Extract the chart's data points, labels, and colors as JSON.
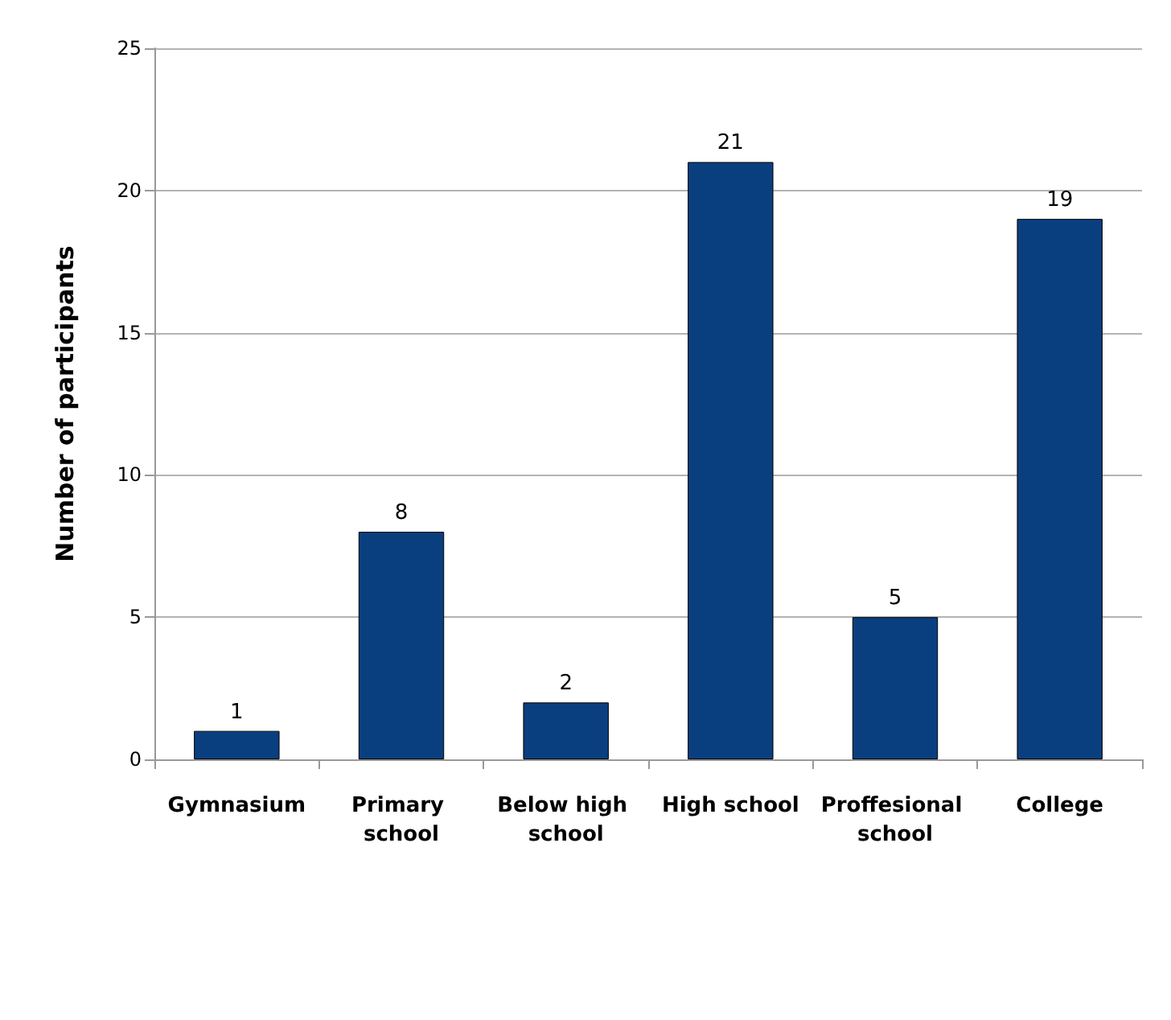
{
  "chart_data": {
    "type": "bar",
    "ylabel": "Number of participants",
    "categories": [
      "Gymnasium",
      "Primary school",
      "Below high school",
      "High school",
      "Proffesional school",
      "College"
    ],
    "values": [
      1,
      8,
      2,
      21,
      5,
      19
    ],
    "color": "#0a3f7f",
    "ylim": [
      0,
      25
    ],
    "yticks": [
      0,
      5,
      10,
      15,
      20,
      25
    ],
    "grid": "y",
    "data_labels": true
  }
}
